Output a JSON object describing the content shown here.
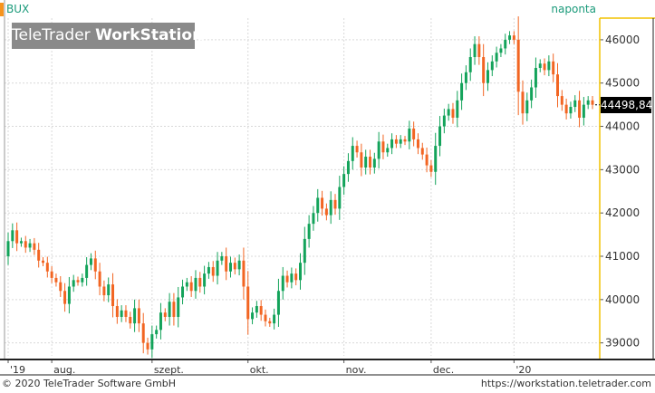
{
  "header": {
    "symbol": "BUX",
    "interval": "naponta",
    "watermark_light": "TeleTrader ",
    "watermark_bold": "WorkStation"
  },
  "last_price_label": "44498,84",
  "footer": {
    "copyright": "© 2020 TeleTrader Software GmbH",
    "url": "https://workstation.teletrader.com"
  },
  "colors": {
    "up": "#13a35a",
    "down": "#f26522",
    "accent": "#f7941d",
    "grid": "#d9d9d9",
    "axis_text": "#333333",
    "price_axis_line": "#f2c200"
  },
  "chart_data": {
    "type": "candlestick",
    "title": "BUX",
    "interval": "naponta",
    "ylim": [
      38700,
      46500
    ],
    "y_ticks": [
      {
        "value": 39000,
        "label": "39000"
      },
      {
        "value": 40000,
        "label": "40000"
      },
      {
        "value": 41000,
        "label": "41000"
      },
      {
        "value": 42000,
        "label": "42000"
      },
      {
        "value": 43000,
        "label": "43000"
      },
      {
        "value": 44000,
        "label": "44000"
      },
      {
        "value": 45000,
        "label": "45000"
      },
      {
        "value": 46000,
        "label": "46000"
      }
    ],
    "x_ticks": [
      {
        "index": 0,
        "label": "'19"
      },
      {
        "index": 10,
        "label": "aug."
      },
      {
        "index": 33,
        "label": "szept."
      },
      {
        "index": 55,
        "label": "okt."
      },
      {
        "index": 77,
        "label": "nov."
      },
      {
        "index": 97,
        "label": "dec."
      },
      {
        "index": 116,
        "label": "'20"
      }
    ],
    "last_value": 44498.84,
    "candles": [
      [
        41000,
        41350
      ],
      [
        41350,
        41600
      ],
      [
        41600,
        41300
      ],
      [
        41300,
        41350
      ],
      [
        41350,
        41200
      ],
      [
        41200,
        41300
      ],
      [
        41300,
        41150
      ],
      [
        41150,
        40900
      ],
      [
        40900,
        40850
      ],
      [
        40850,
        40650
      ],
      [
        40650,
        40500
      ],
      [
        40500,
        40400
      ],
      [
        40400,
        40200
      ],
      [
        40200,
        39900
      ],
      [
        39900,
        40300
      ],
      [
        40300,
        40450
      ],
      [
        40450,
        40400
      ],
      [
        40400,
        40500
      ],
      [
        40500,
        40800
      ],
      [
        40800,
        40950
      ],
      [
        40950,
        40650
      ],
      [
        40650,
        40300
      ],
      [
        40300,
        40100
      ],
      [
        40100,
        40350
      ],
      [
        40350,
        39850
      ],
      [
        39850,
        39600
      ],
      [
        39600,
        39750
      ],
      [
        39750,
        39600
      ],
      [
        39600,
        39450
      ],
      [
        39450,
        39800
      ],
      [
        39800,
        39450
      ],
      [
        39450,
        39000
      ],
      [
        39000,
        38850
      ],
      [
        38850,
        39200
      ],
      [
        39200,
        39300
      ],
      [
        39300,
        39700
      ],
      [
        39700,
        39600
      ],
      [
        39600,
        39950
      ],
      [
        39950,
        39600
      ],
      [
        39600,
        40050
      ],
      [
        40050,
        40300
      ],
      [
        40300,
        40400
      ],
      [
        40400,
        40200
      ],
      [
        40200,
        40500
      ],
      [
        40500,
        40300
      ],
      [
        40300,
        40600
      ],
      [
        40600,
        40750
      ],
      [
        40750,
        40550
      ],
      [
        40550,
        40900
      ],
      [
        40900,
        41000
      ],
      [
        41000,
        40650
      ],
      [
        40650,
        40850
      ],
      [
        40850,
        40700
      ],
      [
        40700,
        40900
      ],
      [
        40900,
        40300
      ],
      [
        40300,
        39550
      ],
      [
        39550,
        39700
      ],
      [
        39700,
        39850
      ],
      [
        39850,
        39650
      ],
      [
        39650,
        39500
      ],
      [
        39500,
        39450
      ],
      [
        39450,
        39650
      ],
      [
        39650,
        40200
      ],
      [
        40200,
        40550
      ],
      [
        40550,
        40400
      ],
      [
        40400,
        40600
      ],
      [
        40600,
        40450
      ],
      [
        40450,
        40850
      ],
      [
        40850,
        41400
      ],
      [
        41400,
        41750
      ],
      [
        41750,
        42000
      ],
      [
        42000,
        42350
      ],
      [
        42350,
        42100
      ],
      [
        42100,
        41950
      ],
      [
        41950,
        42300
      ],
      [
        42300,
        42100
      ],
      [
        42100,
        42600
      ],
      [
        42600,
        42900
      ],
      [
        42900,
        43200
      ],
      [
        43200,
        43550
      ],
      [
        43550,
        43400
      ],
      [
        43400,
        43050
      ],
      [
        43050,
        43300
      ],
      [
        43300,
        43050
      ],
      [
        43050,
        43250
      ],
      [
        43250,
        43650
      ],
      [
        43650,
        43400
      ],
      [
        43400,
        43500
      ],
      [
        43500,
        43700
      ],
      [
        43700,
        43600
      ],
      [
        43600,
        43700
      ],
      [
        43700,
        43650
      ],
      [
        43650,
        43950
      ],
      [
        43950,
        43700
      ],
      [
        43700,
        43500
      ],
      [
        43500,
        43350
      ],
      [
        43350,
        43100
      ],
      [
        43100,
        42950
      ],
      [
        42950,
        43550
      ],
      [
        43550,
        44000
      ],
      [
        44000,
        44250
      ],
      [
        44250,
        44400
      ],
      [
        44400,
        44200
      ],
      [
        44200,
        44600
      ],
      [
        44600,
        45000
      ],
      [
        45000,
        45250
      ],
      [
        45250,
        45600
      ],
      [
        45600,
        45900
      ],
      [
        45900,
        45600
      ],
      [
        45600,
        45000
      ],
      [
        45000,
        45300
      ],
      [
        45300,
        45500
      ],
      [
        45500,
        45700
      ],
      [
        45700,
        45800
      ],
      [
        45800,
        46000
      ],
      [
        46000,
        46100
      ],
      [
        46100,
        46000
      ],
      [
        46000,
        44800
      ],
      [
        44800,
        44300
      ],
      [
        44300,
        44600
      ],
      [
        44600,
        44900
      ],
      [
        44900,
        45350
      ],
      [
        45350,
        45450
      ],
      [
        45450,
        45300
      ],
      [
        45300,
        45500
      ],
      [
        45500,
        45200
      ],
      [
        45200,
        44700
      ],
      [
        44700,
        44500
      ],
      [
        44500,
        44300
      ],
      [
        44300,
        44450
      ],
      [
        44450,
        44600
      ],
      [
        44600,
        44200
      ],
      [
        44200,
        44500
      ],
      [
        44500,
        44600
      ],
      [
        44600,
        44498.84
      ]
    ]
  }
}
